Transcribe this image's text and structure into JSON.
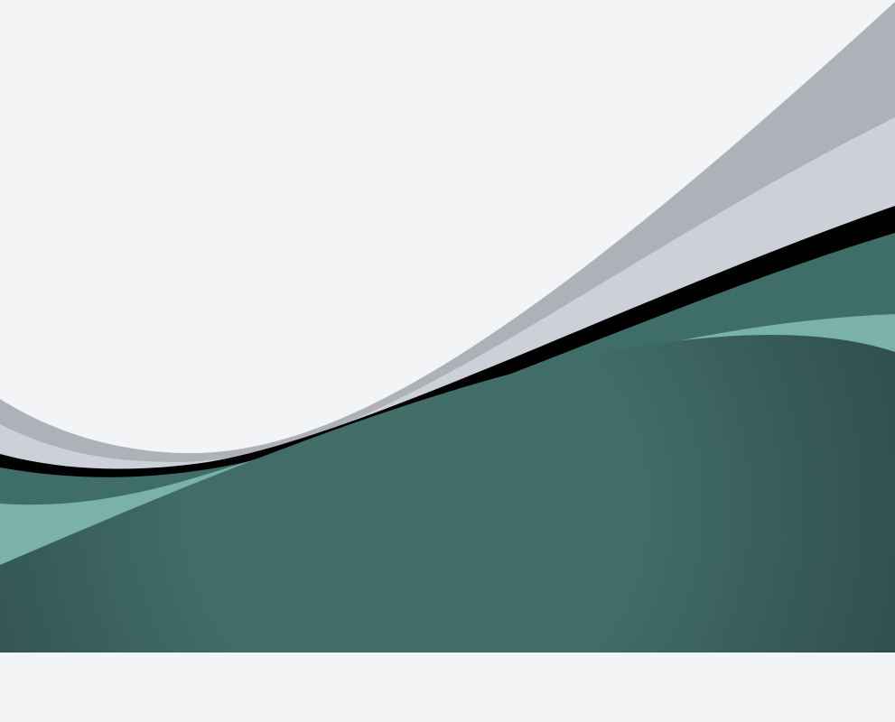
{
  "background_color": "#f2f4f6",
  "graphic": {
    "type": "abstract-wave-background",
    "layers": [
      {
        "name": "back-gray-band",
        "color": "#aeb2b8"
      },
      {
        "name": "light-gray-band",
        "color": "#ccd0d7"
      },
      {
        "name": "black-stripe",
        "color": "#000000"
      },
      {
        "name": "teal-band",
        "color": "#3f6e69"
      },
      {
        "name": "light-teal-band",
        "color": "#7ab2ab"
      },
      {
        "name": "front-teal-band",
        "color": "#416c68"
      }
    ],
    "front_gradient": {
      "start": "#426e6a",
      "end": "#2f4f4b"
    }
  },
  "footer_strip_color": "#f2f4f6"
}
